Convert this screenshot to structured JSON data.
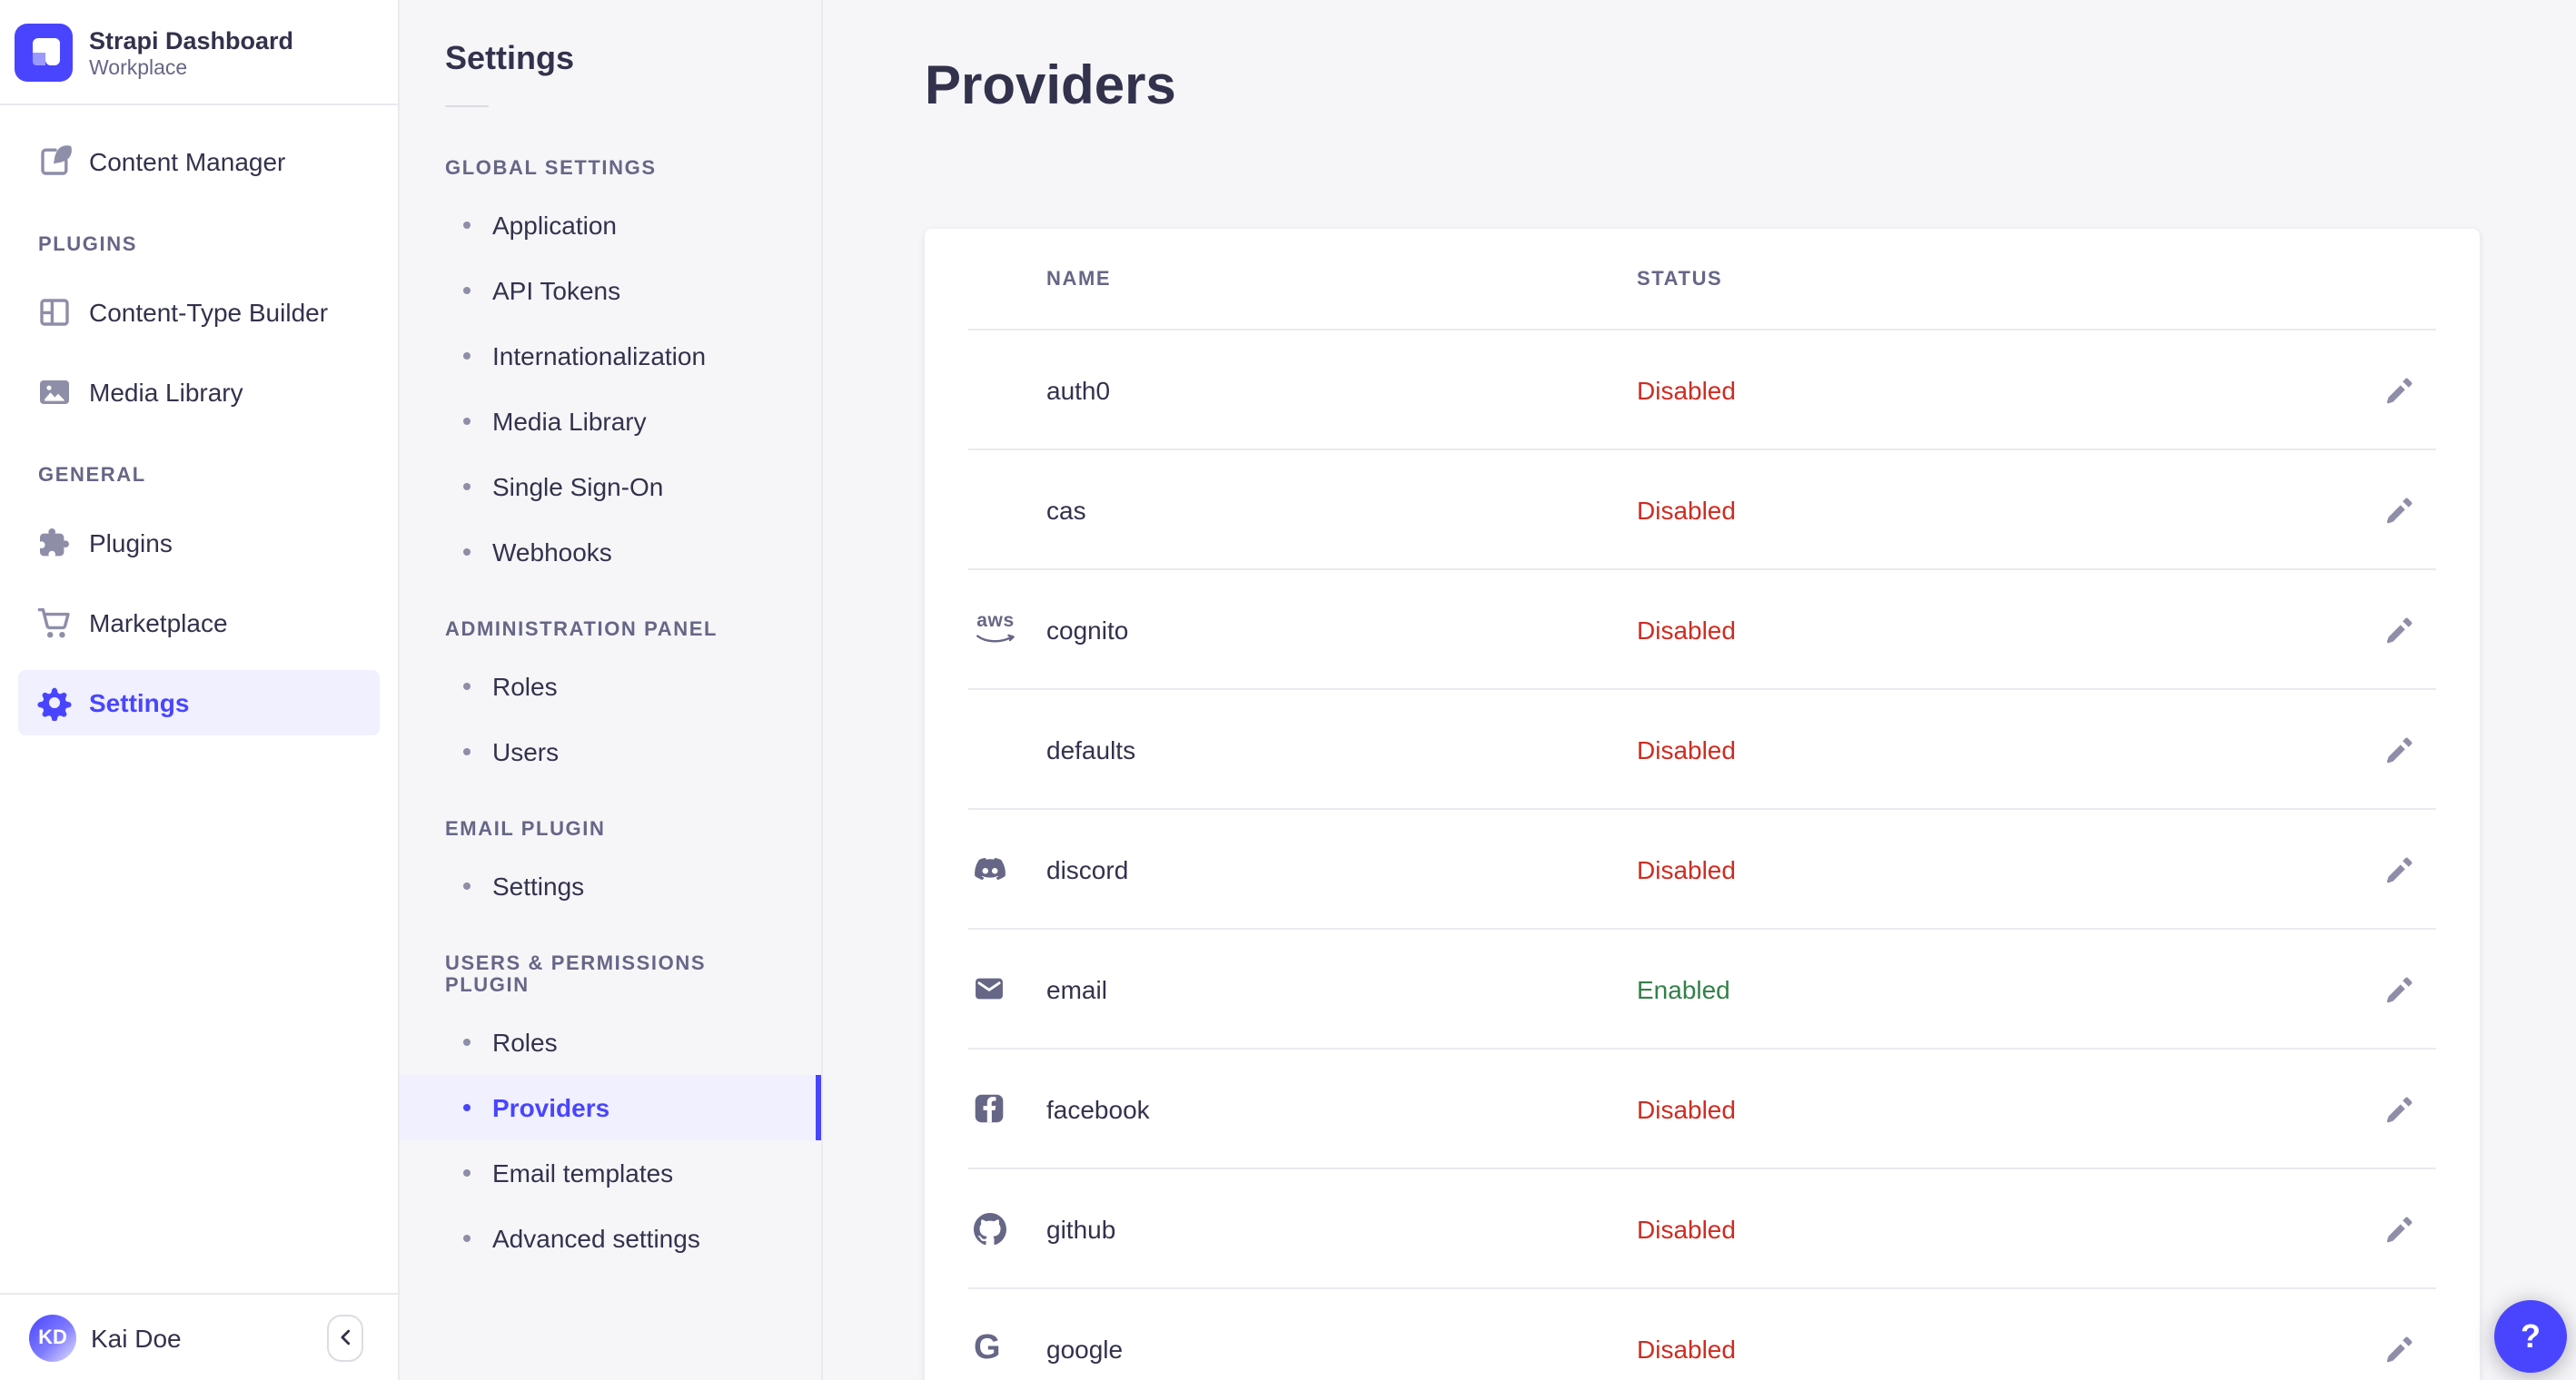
{
  "brand": {
    "name": "Strapi Dashboard",
    "workplace": "Workplace"
  },
  "accent_colors": {
    "primary": "#4945ff",
    "primary_bg": "#f0f0ff",
    "danger": "#d02b20",
    "success": "#328048"
  },
  "sidebar": {
    "sections": [
      {
        "label": null,
        "items": [
          {
            "label": "Content Manager",
            "icon": "feather-pen-icon",
            "active": false
          }
        ]
      },
      {
        "label": "PLUGINS",
        "items": [
          {
            "label": "Content-Type Builder",
            "icon": "layout-grid-icon",
            "active": false
          },
          {
            "label": "Media Library",
            "icon": "image-icon",
            "active": false
          }
        ]
      },
      {
        "label": "GENERAL",
        "items": [
          {
            "label": "Plugins",
            "icon": "puzzle-icon",
            "active": false
          },
          {
            "label": "Marketplace",
            "icon": "cart-icon",
            "active": false
          },
          {
            "label": "Settings",
            "icon": "gear-icon",
            "active": true
          }
        ]
      }
    ],
    "user": {
      "initials": "KD",
      "name": "Kai Doe"
    },
    "collapse_icon": "chevron-left-icon"
  },
  "subnav": {
    "title": "Settings",
    "groups": [
      {
        "label": "GLOBAL SETTINGS",
        "items": [
          {
            "label": "Application",
            "active": false
          },
          {
            "label": "API Tokens",
            "active": false
          },
          {
            "label": "Internationalization",
            "active": false
          },
          {
            "label": "Media Library",
            "active": false
          },
          {
            "label": "Single Sign-On",
            "active": false
          },
          {
            "label": "Webhooks",
            "active": false
          }
        ]
      },
      {
        "label": "ADMINISTRATION PANEL",
        "items": [
          {
            "label": "Roles",
            "active": false
          },
          {
            "label": "Users",
            "active": false
          }
        ]
      },
      {
        "label": "EMAIL PLUGIN",
        "items": [
          {
            "label": "Settings",
            "active": false
          }
        ]
      },
      {
        "label": "USERS & PERMISSIONS PLUGIN",
        "items": [
          {
            "label": "Roles",
            "active": false
          },
          {
            "label": "Providers",
            "active": true
          },
          {
            "label": "Email templates",
            "active": false
          },
          {
            "label": "Advanced settings",
            "active": false
          }
        ]
      }
    ]
  },
  "main": {
    "title": "Providers",
    "table": {
      "columns": [
        "NAME",
        "STATUS"
      ],
      "status_colors": {
        "Disabled": "#d02b20",
        "Enabled": "#328048"
      },
      "edit_icon": "pencil-icon",
      "rows": [
        {
          "name": "auth0",
          "icon": null,
          "status": "Disabled"
        },
        {
          "name": "cas",
          "icon": null,
          "status": "Disabled"
        },
        {
          "name": "cognito",
          "icon": "aws-logo-icon",
          "status": "Disabled"
        },
        {
          "name": "defaults",
          "icon": null,
          "status": "Disabled"
        },
        {
          "name": "discord",
          "icon": "discord-logo-icon",
          "status": "Disabled"
        },
        {
          "name": "email",
          "icon": "envelope-icon",
          "status": "Enabled"
        },
        {
          "name": "facebook",
          "icon": "facebook-logo-icon",
          "status": "Disabled"
        },
        {
          "name": "github",
          "icon": "github-logo-icon",
          "status": "Disabled"
        },
        {
          "name": "google",
          "icon": "google-logo-icon",
          "status": "Disabled"
        }
      ]
    }
  },
  "help_button": {
    "icon": "question-mark-icon",
    "label": "?"
  },
  "aws_icon_text": "aws"
}
